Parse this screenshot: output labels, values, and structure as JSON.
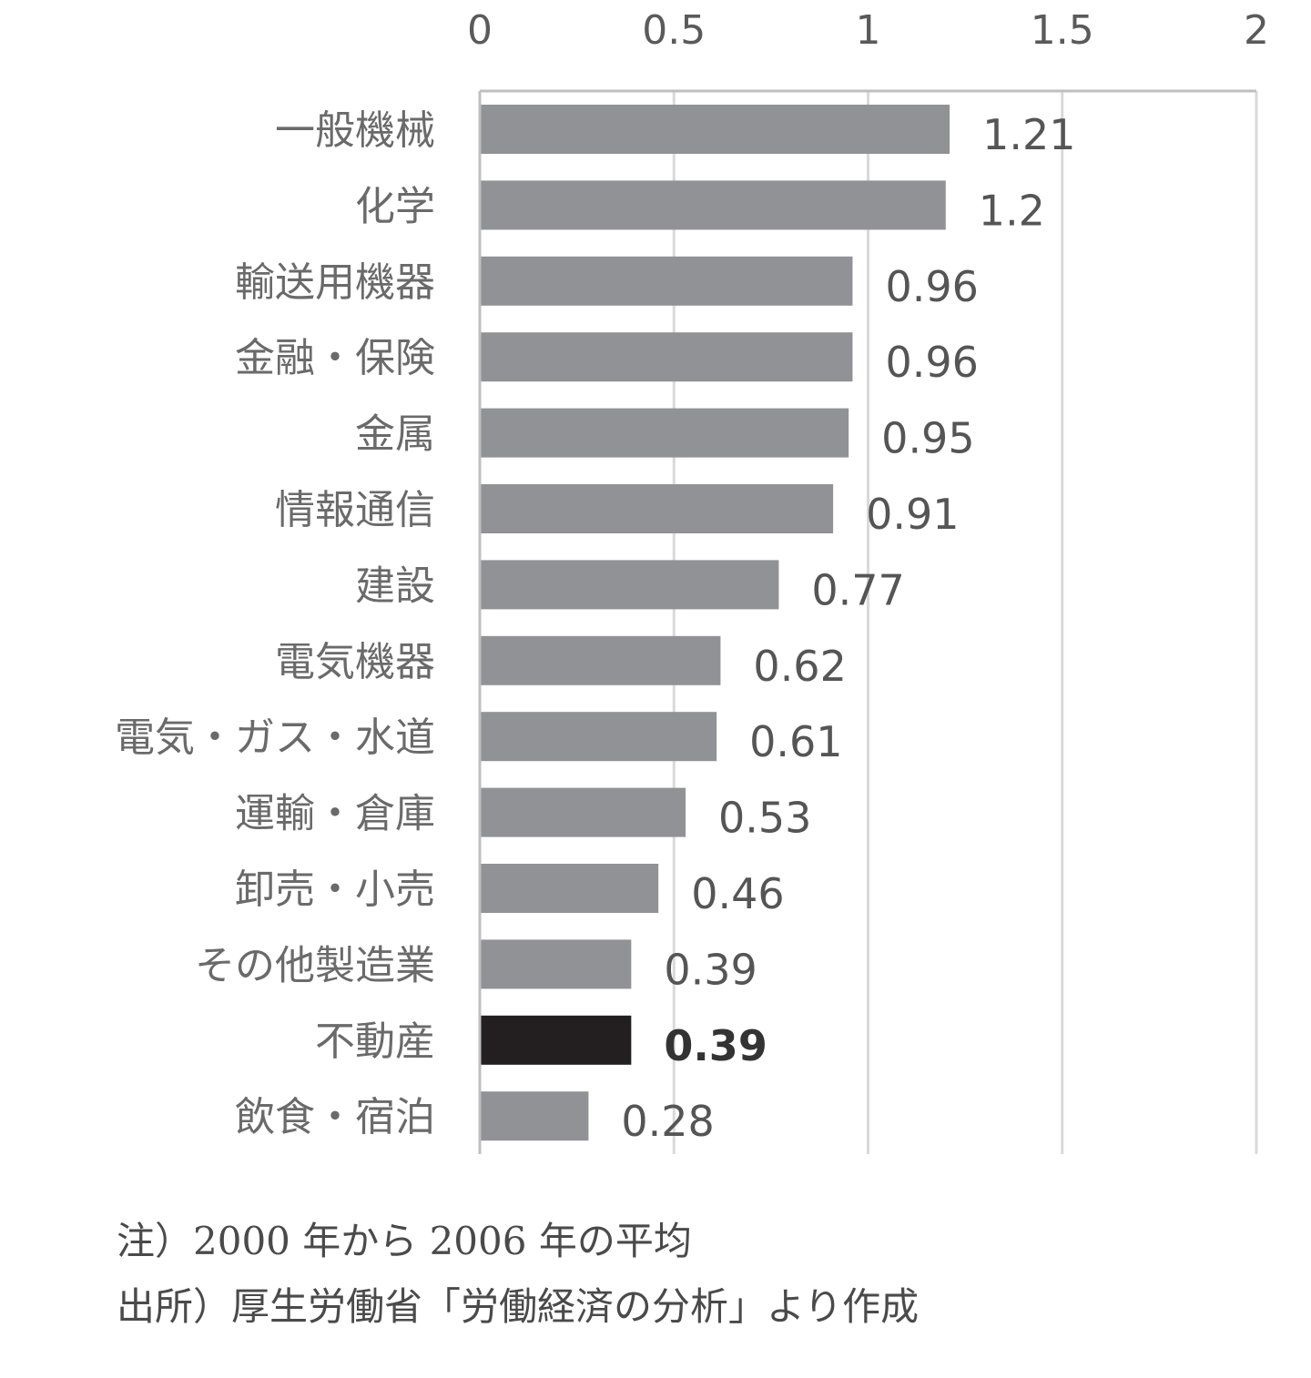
{
  "chart_data": {
    "type": "bar",
    "orientation": "horizontal",
    "categories": [
      "一般機械",
      "化学",
      "輸送用機器",
      "金融・保険",
      "金属",
      "情報通信",
      "建設",
      "電気機器",
      "電気・ガス・水道",
      "運輸・倉庫",
      "卸売・小売",
      "その他製造業",
      "不動産",
      "飲食・宿泊"
    ],
    "values": [
      1.21,
      1.2,
      0.96,
      0.96,
      0.95,
      0.91,
      0.77,
      0.62,
      0.61,
      0.53,
      0.46,
      0.39,
      0.39,
      0.28
    ],
    "value_labels": [
      "1.21",
      "1.2",
      "0.96",
      "0.96",
      "0.95",
      "0.91",
      "0.77",
      "0.62",
      "0.61",
      "0.53",
      "0.46",
      "0.39",
      "0.39",
      "0.28"
    ],
    "highlight_category": "不動産",
    "xlim": [
      0,
      2
    ],
    "x_ticks": [
      "0",
      "0.5",
      "1",
      "1.5",
      "2"
    ],
    "x_axis_position": "top",
    "grid": "vertical",
    "legend": "none",
    "colors": {
      "bar": "#919296",
      "highlight": "#231f20",
      "grid": "#d9d9d9",
      "axis": "#bfbfbf"
    }
  },
  "notes": {
    "line1": "注）2000 年から 2006 年の平均",
    "line2": "出所）厚生労働省「労働経済の分析」より作成"
  }
}
